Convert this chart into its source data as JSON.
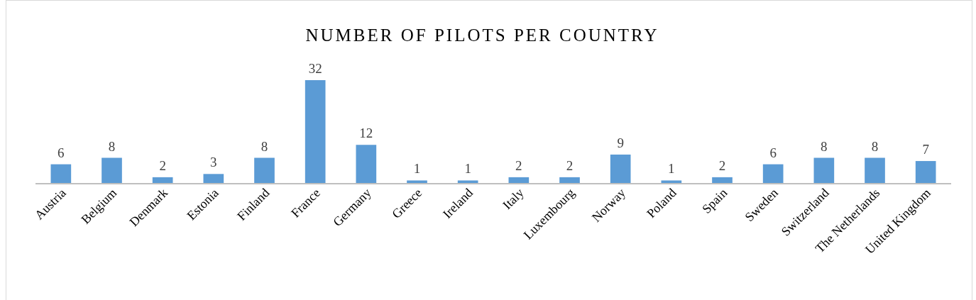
{
  "chart_data": {
    "type": "bar",
    "title": "NUMBER OF PILOTS PER COUNTRY",
    "categories": [
      "Austria",
      "Belgium",
      "Denmark",
      "Estonia",
      "Finland",
      "France",
      "Germany",
      "Greece",
      "Ireland",
      "Italy",
      "Luxembourg",
      "Norway",
      "Poland",
      "Spain",
      "Sweden",
      "Switzerland",
      "The Netherlands",
      "United Kingdom"
    ],
    "values": [
      6,
      8,
      2,
      3,
      8,
      32,
      12,
      1,
      1,
      2,
      2,
      9,
      1,
      2,
      6,
      8,
      8,
      7
    ],
    "color": "#5b9bd5",
    "data_labels": true
  }
}
